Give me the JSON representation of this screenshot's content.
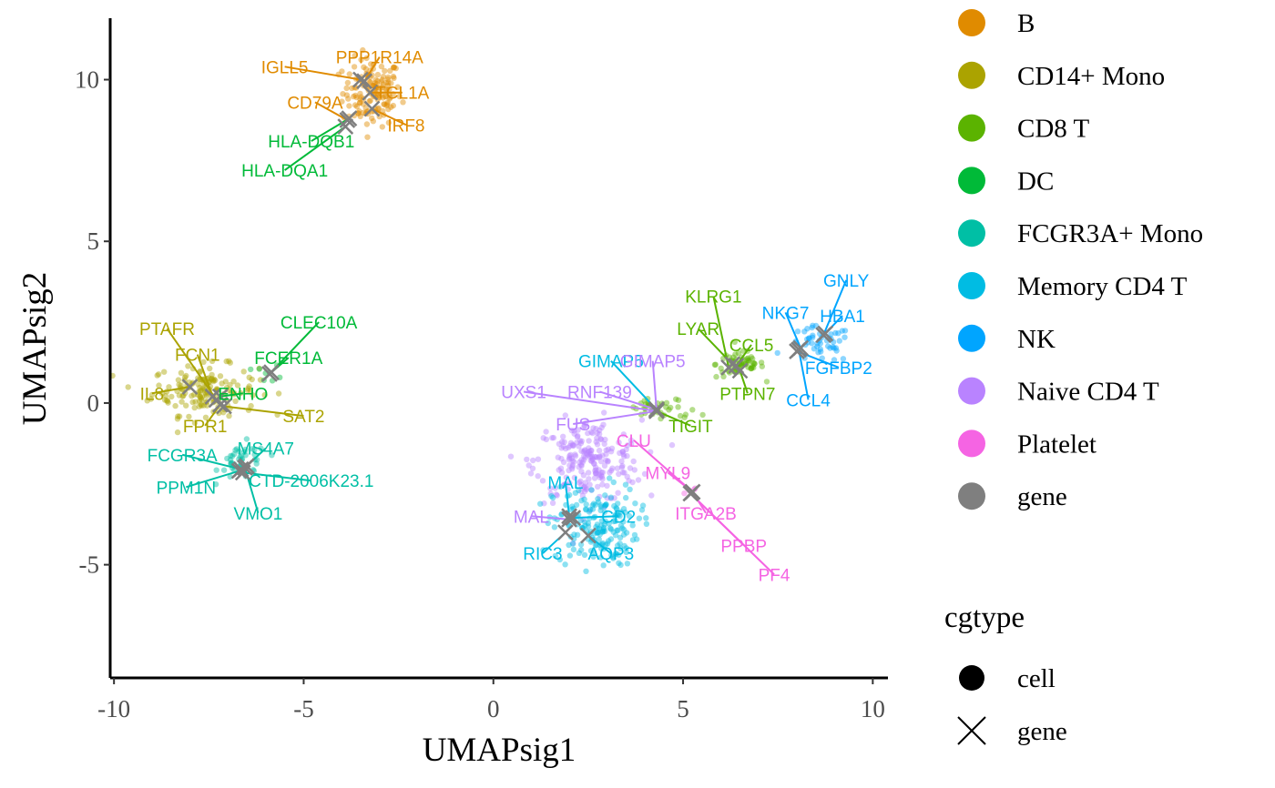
{
  "chart_data": {
    "type": "scatter",
    "xlabel": "UMAPsig1",
    "ylabel": "UMAPsig2",
    "xlim": [
      -10.1,
      10.4
    ],
    "ylim": [
      -8.5,
      11.9
    ],
    "xticks": [
      -10,
      -5,
      0,
      5,
      10
    ],
    "xtick_labels": [
      "-10",
      "-5",
      "0",
      "5",
      "10"
    ],
    "yticks": [
      -5,
      0,
      5,
      10
    ],
    "ytick_labels": [
      "-5",
      "0",
      "5",
      "10"
    ],
    "grid": false,
    "colors": {
      "B": "#E08B00",
      "CD14+ Mono": "#ABA300",
      "CD8 T": "#5BB300",
      "DC": "#00BA38",
      "FCGR3A+ Mono": "#00BFA5",
      "Memory CD4 T": "#00BCE3",
      "NK": "#00A5FF",
      "Naive CD4 T": "#B983FF",
      "Platelet": "#F564E3",
      "gene": "#7F7F7F"
    },
    "cell_clusters": [
      {
        "celltype": "B",
        "center": [
          -3.2,
          9.6
        ],
        "spread": [
          0.55,
          0.75
        ],
        "n": 150
      },
      {
        "celltype": "CD14+ Mono",
        "center": [
          -7.6,
          0.4
        ],
        "spread": [
          1.0,
          0.55
        ],
        "n": 160
      },
      {
        "celltype": "CD8 T",
        "center": [
          6.5,
          1.2
        ],
        "spread": [
          0.45,
          0.3
        ],
        "n": 60
      },
      {
        "celltype": "NK",
        "center": [
          8.6,
          1.8
        ],
        "spread": [
          0.6,
          0.4
        ],
        "n": 50
      },
      {
        "celltype": "FCGR3A+ Mono",
        "center": [
          -6.6,
          -1.8
        ],
        "spread": [
          0.45,
          0.4
        ],
        "n": 45
      },
      {
        "celltype": "DC",
        "center": [
          -5.9,
          0.9
        ],
        "spread": [
          0.25,
          0.2
        ],
        "n": 8
      },
      {
        "celltype": "Naive CD4 T",
        "center": [
          2.5,
          -1.8
        ],
        "spread": [
          1.0,
          0.9
        ],
        "n": 220
      },
      {
        "celltype": "Memory CD4 T",
        "center": [
          2.7,
          -3.8
        ],
        "spread": [
          0.8,
          0.9
        ],
        "n": 180
      },
      {
        "celltype": "CD8 T",
        "center": [
          4.4,
          -0.2
        ],
        "spread": [
          0.7,
          0.25
        ],
        "n": 40
      },
      {
        "celltype": "Platelet",
        "center": [
          5.2,
          -2.7
        ],
        "spread": [
          0.15,
          0.15
        ],
        "n": 4
      }
    ],
    "genes": [
      {
        "label": "IGLL5",
        "celltype": "B",
        "x": -3.5,
        "y": 10.0,
        "lx": -5.5,
        "ly": 10.4
      },
      {
        "label": "PPP1R14A",
        "celltype": "B",
        "x": -3.4,
        "y": 9.95,
        "lx": -3.0,
        "ly": 10.7
      },
      {
        "label": "TCL1A",
        "celltype": "B",
        "x": -3.25,
        "y": 9.6,
        "lx": -2.4,
        "ly": 9.6
      },
      {
        "label": "CD79A",
        "celltype": "B",
        "x": -3.85,
        "y": 8.75,
        "lx": -4.7,
        "ly": 9.3
      },
      {
        "label": "IRF8",
        "celltype": "B",
        "x": -3.2,
        "y": 9.1,
        "lx": -2.3,
        "ly": 8.6
      },
      {
        "label": "HLA-DQB1",
        "celltype": "DC",
        "x": -3.8,
        "y": 8.8,
        "lx": -4.8,
        "ly": 8.1
      },
      {
        "label": "HLA-DQA1",
        "celltype": "DC",
        "x": -3.9,
        "y": 8.55,
        "lx": -5.5,
        "ly": 7.2
      },
      {
        "label": "PTAFR",
        "celltype": "CD14+ Mono",
        "x": -7.3,
        "y": 0.1,
        "lx": -8.6,
        "ly": 2.3
      },
      {
        "label": "FCN1",
        "celltype": "CD14+ Mono",
        "x": -7.4,
        "y": 0.2,
        "lx": -7.8,
        "ly": 1.5
      },
      {
        "label": "IL8",
        "celltype": "CD14+ Mono",
        "x": -8.0,
        "y": 0.5,
        "lx": -9.0,
        "ly": 0.3
      },
      {
        "label": "FPR1",
        "celltype": "CD14+ Mono",
        "x": -7.2,
        "y": -0.05,
        "lx": -7.6,
        "ly": -0.7
      },
      {
        "label": "SAT2",
        "celltype": "CD14+ Mono",
        "x": -7.1,
        "y": -0.1,
        "lx": -5.0,
        "ly": -0.4
      },
      {
        "label": "CLEC10A",
        "celltype": "DC",
        "x": -5.9,
        "y": 0.9,
        "lx": -4.6,
        "ly": 2.5
      },
      {
        "label": "FCER1A",
        "celltype": "DC",
        "x": -5.85,
        "y": 0.95,
        "lx": -5.4,
        "ly": 1.4
      },
      {
        "label": "ENHO",
        "celltype": "DC",
        "x": -7.2,
        "y": 0.2,
        "lx": -6.6,
        "ly": 0.3
      },
      {
        "label": "FCGR3A",
        "celltype": "FCGR3A+ Mono",
        "x": -6.65,
        "y": -2.05,
        "lx": -8.2,
        "ly": -1.6
      },
      {
        "label": "MS4A7",
        "celltype": "FCGR3A+ Mono",
        "x": -6.5,
        "y": -1.95,
        "lx": -6.0,
        "ly": -1.4
      },
      {
        "label": "PPM1N",
        "celltype": "FCGR3A+ Mono",
        "x": -6.7,
        "y": -2.1,
        "lx": -8.1,
        "ly": -2.6
      },
      {
        "label": "CTD-2006K23.1",
        "celltype": "FCGR3A+ Mono",
        "x": -6.6,
        "y": -2.15,
        "lx": -4.8,
        "ly": -2.4
      },
      {
        "label": "VMO1",
        "celltype": "FCGR3A+ Mono",
        "x": -6.55,
        "y": -2.0,
        "lx": -6.2,
        "ly": -3.4
      },
      {
        "label": "KLRG1",
        "celltype": "CD8 T",
        "x": 6.2,
        "y": 1.1,
        "lx": 5.8,
        "ly": 3.3
      },
      {
        "label": "LYAR",
        "celltype": "CD8 T",
        "x": 6.3,
        "y": 1.2,
        "lx": 5.4,
        "ly": 2.3
      },
      {
        "label": "CCL5",
        "celltype": "CD8 T",
        "x": 6.4,
        "y": 1.15,
        "lx": 6.8,
        "ly": 1.8
      },
      {
        "label": "PTPN7",
        "celltype": "CD8 T",
        "x": 6.5,
        "y": 1.0,
        "lx": 6.7,
        "ly": 0.3
      },
      {
        "label": "TIGIT",
        "celltype": "CD8 T",
        "x": 4.3,
        "y": -0.25,
        "lx": 5.2,
        "ly": -0.7
      },
      {
        "label": "GNLY",
        "celltype": "NK",
        "x": 8.7,
        "y": 2.1,
        "lx": 9.3,
        "ly": 3.8
      },
      {
        "label": "NKG7",
        "celltype": "NK",
        "x": 8.1,
        "y": 1.7,
        "lx": 7.7,
        "ly": 2.8
      },
      {
        "label": "HBA1",
        "celltype": "NK",
        "x": 8.75,
        "y": 2.15,
        "lx": 9.2,
        "ly": 2.7
      },
      {
        "label": "FGFBP2",
        "celltype": "NK",
        "x": 8.0,
        "y": 1.6,
        "lx": 9.1,
        "ly": 1.1
      },
      {
        "label": "CCL4",
        "celltype": "NK",
        "x": 8.05,
        "y": 1.65,
        "lx": 8.3,
        "ly": 0.1
      },
      {
        "label": "GIMAP5",
        "celltype": "Memory CD4 T",
        "x": 4.3,
        "y": -0.2,
        "lx": 3.1,
        "ly": 1.3
      },
      {
        "label": "GIMAP5",
        "celltype": "Naive CD4 T",
        "x": 4.3,
        "y": -0.2,
        "lx": 4.2,
        "ly": 1.3
      },
      {
        "label": "UXS1",
        "celltype": "Naive CD4 T",
        "x": 4.3,
        "y": -0.25,
        "lx": 0.8,
        "ly": 0.35
      },
      {
        "label": "RNF139",
        "celltype": "Naive CD4 T",
        "x": 4.3,
        "y": -0.2,
        "lx": 2.8,
        "ly": 0.35
      },
      {
        "label": "FUS",
        "celltype": "Naive CD4 T",
        "x": 4.3,
        "y": -0.25,
        "lx": 2.1,
        "ly": -0.65
      },
      {
        "label": "CLU",
        "celltype": "Platelet",
        "x": 5.25,
        "y": -2.75,
        "lx": 3.7,
        "ly": -1.15
      },
      {
        "label": "MYL9",
        "celltype": "Platelet",
        "x": 5.25,
        "y": -2.75,
        "lx": 4.6,
        "ly": -2.15
      },
      {
        "label": "ITGA2B",
        "celltype": "Platelet",
        "x": 5.25,
        "y": -2.75,
        "lx": 5.6,
        "ly": -3.4
      },
      {
        "label": "PPBP",
        "celltype": "Platelet",
        "x": 5.2,
        "y": -2.8,
        "lx": 6.6,
        "ly": -4.4
      },
      {
        "label": "PF4",
        "celltype": "Platelet",
        "x": 5.2,
        "y": -2.8,
        "lx": 7.4,
        "ly": -5.3
      },
      {
        "label": "MAL",
        "celltype": "Memory CD4 T",
        "x": 2.0,
        "y": -3.5,
        "lx": 1.9,
        "ly": -2.45
      },
      {
        "label": "MAL",
        "celltype": "Naive CD4 T",
        "x": 2.0,
        "y": -3.6,
        "lx": 1.0,
        "ly": -3.5
      },
      {
        "label": "CD2",
        "celltype": "Memory CD4 T",
        "x": 2.1,
        "y": -3.55,
        "lx": 3.3,
        "ly": -3.5
      },
      {
        "label": "RIC3",
        "celltype": "Memory CD4 T",
        "x": 1.9,
        "y": -4.0,
        "lx": 1.3,
        "ly": -4.65
      },
      {
        "label": "AQP3",
        "celltype": "Memory CD4 T",
        "x": 2.5,
        "y": -4.1,
        "lx": 3.1,
        "ly": -4.65
      }
    ],
    "legend": {
      "position": "right",
      "color_title": "",
      "color_entries": [
        "B",
        "CD14+ Mono",
        "CD8 T",
        "DC",
        "FCGR3A+ Mono",
        "Memory CD4 T",
        "NK",
        "Naive CD4 T",
        "Platelet",
        "gene"
      ],
      "shape_title": "cgtype",
      "shape_entries": [
        "cell",
        "gene"
      ]
    }
  }
}
